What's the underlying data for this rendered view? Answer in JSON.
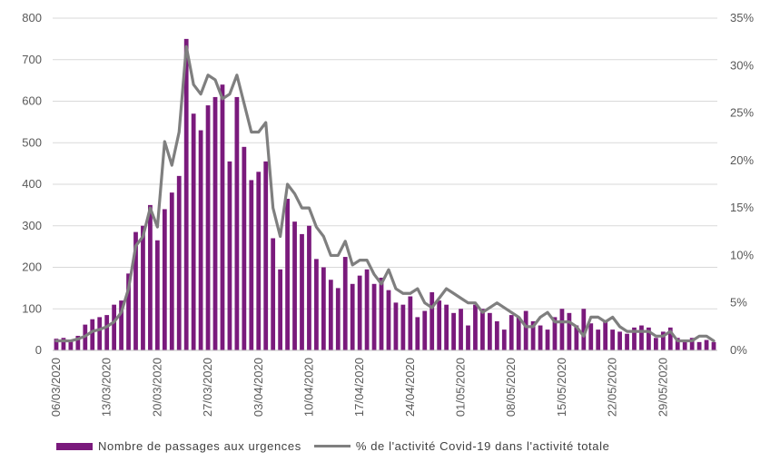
{
  "chart_data": {
    "type": "bar",
    "title": "",
    "xlabel": "",
    "ylabel": "",
    "ylim": [
      0,
      800
    ],
    "y2lim": [
      0,
      35
    ],
    "y_ticks": [
      "0",
      "100",
      "200",
      "300",
      "400",
      "500",
      "600",
      "700",
      "800"
    ],
    "y2_ticks": [
      "0%",
      "5%",
      "10%",
      "15%",
      "20%",
      "25%",
      "30%",
      "35%"
    ],
    "x_tick_labels": [
      "06/03/2020",
      "13/03/2020",
      "20/03/2020",
      "27/03/2020",
      "03/04/2020",
      "10/04/2020",
      "17/04/2020",
      "24/04/2020",
      "01/05/2020",
      "08/05/2020",
      "15/05/2020",
      "22/05/2020",
      "29/05/2020"
    ],
    "start_date": "06/03/2020",
    "grid": "horizontal",
    "legend_position": "bottom",
    "colors": {
      "bar": "#7a1a7c",
      "line": "#7f7f7f",
      "grid": "#d9d9d9",
      "text": "#595959"
    },
    "series": [
      {
        "name": "Nombre de passages aux urgences",
        "kind": "bar",
        "axis": "left",
        "values": [
          28,
          30,
          25,
          35,
          62,
          75,
          80,
          85,
          110,
          120,
          185,
          285,
          300,
          350,
          265,
          340,
          380,
          420,
          750,
          570,
          530,
          590,
          610,
          640,
          455,
          610,
          490,
          410,
          430,
          455,
          270,
          195,
          365,
          310,
          280,
          300,
          220,
          200,
          170,
          150,
          225,
          160,
          180,
          195,
          160,
          175,
          145,
          115,
          110,
          130,
          80,
          95,
          140,
          120,
          110,
          90,
          100,
          60,
          110,
          100,
          90,
          70,
          50,
          85,
          80,
          95,
          70,
          60,
          50,
          80,
          100,
          90,
          60,
          100,
          65,
          50,
          70,
          50,
          45,
          40,
          55,
          60,
          55,
          30,
          45,
          55,
          30,
          25,
          30,
          20,
          25,
          20
        ]
      },
      {
        "name": "% de l'activité Covid-19 dans l'activité totale",
        "kind": "line",
        "axis": "right",
        "values": [
          1.0,
          1.0,
          1.0,
          1.2,
          1.5,
          2.0,
          2.2,
          2.5,
          3.0,
          4.0,
          6.5,
          11.0,
          12.0,
          15.0,
          13.0,
          22.0,
          19.5,
          23.0,
          32.0,
          28.0,
          27.0,
          29.0,
          28.5,
          26.5,
          27.0,
          29.0,
          26.0,
          23.0,
          23.0,
          24.0,
          15.0,
          12.0,
          17.5,
          16.5,
          15.0,
          15.0,
          13.0,
          12.0,
          10.0,
          10.0,
          11.5,
          9.0,
          9.5,
          9.5,
          8.0,
          7.0,
          8.5,
          6.5,
          6.0,
          6.0,
          6.5,
          5.0,
          4.5,
          5.5,
          6.5,
          6.0,
          5.5,
          5.0,
          5.0,
          4.0,
          4.5,
          5.0,
          4.5,
          4.0,
          3.5,
          2.5,
          2.5,
          3.5,
          4.0,
          3.0,
          3.0,
          3.0,
          2.5,
          1.5,
          3.5,
          3.5,
          3.0,
          3.5,
          2.5,
          2.0,
          2.0,
          2.0,
          2.0,
          1.5,
          1.5,
          2.0,
          1.0,
          1.0,
          1.0,
          1.5,
          1.5,
          1.0
        ]
      }
    ]
  }
}
